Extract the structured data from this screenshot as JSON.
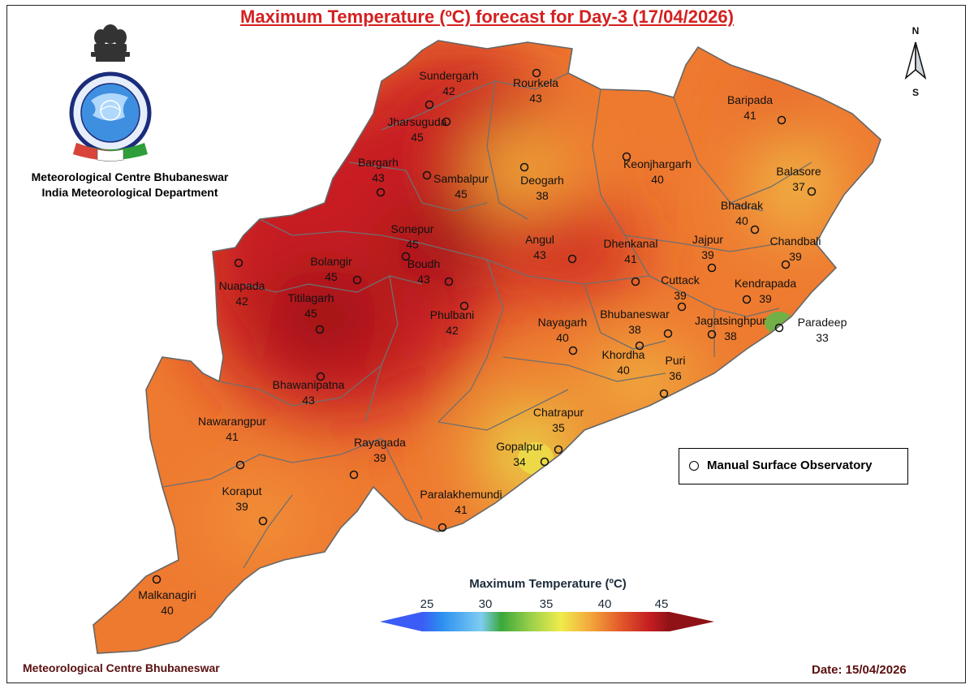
{
  "title": "Maximum Temperature (ºC) forecast for Day-3 (17/04/2026)",
  "org": {
    "line1": "Meteorological Centre Bhubaneswar",
    "line2": "India Meteorological Department"
  },
  "emblem_text": {
    "hindi": "भारत मौसम विज्ञान विभाग",
    "english": "INDIA METEOROLOGICAL DEPARTMENT",
    "motto": "आदित्यात् जायते वृष्टिः"
  },
  "compass": {
    "n": "N",
    "s": "S"
  },
  "legend": {
    "label": "Manual Surface Observatory"
  },
  "colorbar": {
    "title": "Maximum Temperature (ºC)",
    "ticks": [
      "25",
      "30",
      "35",
      "40",
      "45"
    ],
    "colors": [
      "#3b5cf5",
      "#2d8ff0",
      "#7ecdf0",
      "#3aa83a",
      "#9bd04a",
      "#f0ec4c",
      "#f3a73c",
      "#e35a2a",
      "#c41d22",
      "#8e1216"
    ]
  },
  "footer": {
    "left": "Meteorological Centre Bhubaneswar",
    "date": "Date: 15/04/2026"
  },
  "stations": [
    {
      "name": "Sundergarh",
      "value": "42"
    },
    {
      "name": "Rourkela",
      "value": "43"
    },
    {
      "name": "Jharsuguda",
      "value": "45"
    },
    {
      "name": "Bargarh",
      "value": "43"
    },
    {
      "name": "Sambalpur",
      "value": "45"
    },
    {
      "name": "Deogarh",
      "value": "38"
    },
    {
      "name": "Keonjhargarh",
      "value": "40"
    },
    {
      "name": "Baripada",
      "value": "41"
    },
    {
      "name": "Balasore",
      "value": "37"
    },
    {
      "name": "Bhadrak",
      "value": "40"
    },
    {
      "name": "Sonepur",
      "value": "45"
    },
    {
      "name": "Angul",
      "value": "43"
    },
    {
      "name": "Dhenkanal",
      "value": "41"
    },
    {
      "name": "Jajpur",
      "value": "39"
    },
    {
      "name": "Chandbali",
      "value": "39"
    },
    {
      "name": "Bolangir",
      "value": "45"
    },
    {
      "name": "Boudh",
      "value": "43"
    },
    {
      "name": "Nuapada",
      "value": "42"
    },
    {
      "name": "Cuttack",
      "value": "39"
    },
    {
      "name": "Kendrapada",
      "value": "39"
    },
    {
      "name": "Titilagarh",
      "value": "45"
    },
    {
      "name": "Phulbani",
      "value": "42"
    },
    {
      "name": "Nayagarh",
      "value": "40"
    },
    {
      "name": "Bhubaneswar",
      "value": "38"
    },
    {
      "name": "Jagatsinghpur",
      "value": "38"
    },
    {
      "name": "Paradeep",
      "value": "33"
    },
    {
      "name": "Khordha",
      "value": "40"
    },
    {
      "name": "Puri",
      "value": "36"
    },
    {
      "name": "Bhawanipatna",
      "value": "43"
    },
    {
      "name": "Chatrapur",
      "value": "35"
    },
    {
      "name": "Nawarangpur",
      "value": "41"
    },
    {
      "name": "Rayagada",
      "value": "39"
    },
    {
      "name": "Gopalpur",
      "value": "34"
    },
    {
      "name": "Koraput",
      "value": "39"
    },
    {
      "name": "Paralakhemundi",
      "value": "41"
    },
    {
      "name": "Malkanagiri",
      "value": "40"
    }
  ]
}
